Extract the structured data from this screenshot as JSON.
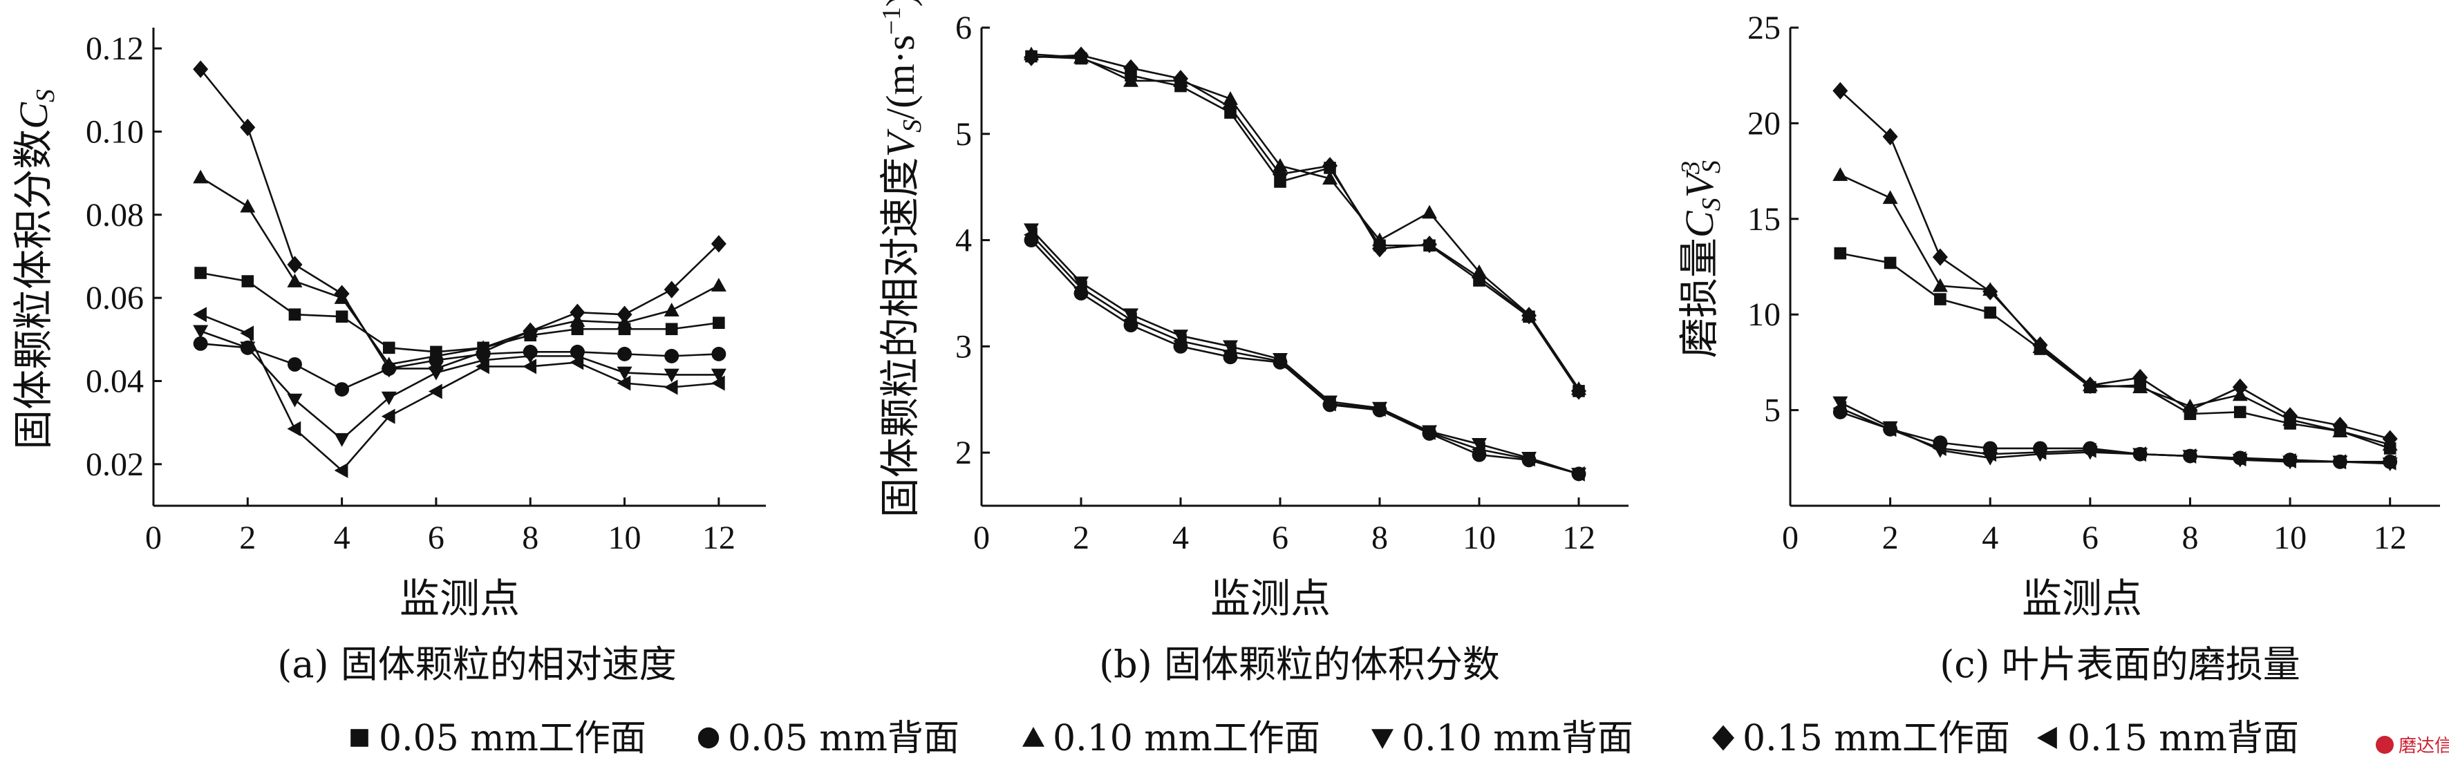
{
  "watermark": "磨达信",
  "series_markers": [
    "square",
    "circle",
    "triangle-up",
    "triangle-down",
    "diamond",
    "triangle-left"
  ],
  "legend": [
    {
      "marker": "square",
      "label": "0.05 mm工作面"
    },
    {
      "marker": "circle",
      "label": "0.05 mm背面"
    },
    {
      "marker": "triangle-up",
      "label": "0.10 mm工作面"
    },
    {
      "marker": "triangle-down",
      "label": "0.10 mm背面"
    },
    {
      "marker": "diamond",
      "label": "0.15 mm工作面"
    },
    {
      "marker": "triangle-left",
      "label": "0.15 mm背面"
    }
  ],
  "chart_data": [
    {
      "type": "line",
      "caption": "(a) 固体颗粒的相对速度",
      "xlabel": "监测点",
      "ylabel_main": "固体颗粒体积分数",
      "ylabel_var": "C",
      "ylabel_sub": "S",
      "xlim": [
        0,
        13
      ],
      "ylim": [
        0.01,
        0.125
      ],
      "xticks": [
        0,
        2,
        4,
        6,
        8,
        10,
        12
      ],
      "yticks": [
        0.02,
        0.04,
        0.06,
        0.08,
        0.1,
        0.12
      ],
      "ytick_labels": [
        "0.02",
        "0.04",
        "0.06",
        "0.08",
        "0.10",
        "0.12"
      ],
      "x": [
        1,
        2,
        3,
        4,
        5,
        6,
        7,
        8,
        9,
        10,
        11,
        12
      ],
      "series": [
        {
          "name": "0.05 mm工作面",
          "values": [
            0.066,
            0.064,
            0.056,
            0.0555,
            0.048,
            0.047,
            0.048,
            0.051,
            0.0525,
            0.0525,
            0.0525,
            0.054
          ]
        },
        {
          "name": "0.05 mm背面",
          "values": [
            0.049,
            0.048,
            0.044,
            0.038,
            0.043,
            0.045,
            0.0465,
            0.047,
            0.047,
            0.0465,
            0.046,
            0.0465
          ]
        },
        {
          "name": "0.10 mm工作面",
          "values": [
            0.089,
            0.082,
            0.064,
            0.06,
            0.044,
            0.046,
            0.048,
            0.052,
            0.0545,
            0.054,
            0.057,
            0.063
          ]
        },
        {
          "name": "0.10 mm背面",
          "values": [
            0.052,
            0.048,
            0.0355,
            0.026,
            0.036,
            0.042,
            0.045,
            0.046,
            0.046,
            0.042,
            0.0415,
            0.0415
          ]
        },
        {
          "name": "0.15 mm工作面",
          "values": [
            0.115,
            0.101,
            0.068,
            0.061,
            0.043,
            0.043,
            0.047,
            0.052,
            0.0565,
            0.056,
            0.062,
            0.073
          ]
        },
        {
          "name": "0.15 mm背面",
          "values": [
            0.056,
            0.0515,
            0.0285,
            0.0185,
            0.0315,
            0.0375,
            0.0435,
            0.0435,
            0.0445,
            0.0395,
            0.0385,
            0.0395
          ]
        }
      ]
    },
    {
      "type": "line",
      "caption": "(b) 固体颗粒的体积分数",
      "xlabel": "监测点",
      "ylabel_main": "固体颗粒的相对速度",
      "ylabel_var": "V",
      "ylabel_sub": "S",
      "ylabel_unit": "/(m·s",
      "ylabel_exp": "−1",
      "ylabel_close": ")",
      "xlim": [
        0,
        13
      ],
      "ylim": [
        1.5,
        6
      ],
      "xticks": [
        0,
        2,
        4,
        6,
        8,
        10,
        12
      ],
      "yticks": [
        2,
        3,
        4,
        5,
        6
      ],
      "ytick_labels": [
        "2",
        "3",
        "4",
        "5",
        "6"
      ],
      "x": [
        1,
        2,
        3,
        4,
        5,
        6,
        7,
        8,
        9,
        10,
        11,
        12
      ],
      "series": [
        {
          "name": "0.05 mm工作面",
          "values": [
            5.73,
            5.71,
            5.55,
            5.45,
            5.2,
            4.55,
            4.68,
            3.95,
            3.95,
            3.62,
            3.28,
            2.58
          ]
        },
        {
          "name": "0.05 mm背面",
          "values": [
            4.0,
            3.5,
            3.2,
            3.0,
            2.9,
            2.85,
            2.45,
            2.4,
            2.18,
            1.98,
            1.93,
            1.8
          ]
        },
        {
          "name": "0.10 mm工作面",
          "values": [
            5.75,
            5.72,
            5.5,
            5.5,
            5.33,
            4.7,
            4.58,
            4.0,
            4.26,
            3.7,
            3.3,
            2.6
          ]
        },
        {
          "name": "0.10 mm背面",
          "values": [
            4.1,
            3.6,
            3.3,
            3.1,
            3.0,
            2.88,
            2.48,
            2.42,
            2.2,
            2.08,
            1.95,
            1.8
          ]
        },
        {
          "name": "0.15 mm工作面",
          "values": [
            5.72,
            5.74,
            5.62,
            5.52,
            5.25,
            4.62,
            4.7,
            3.92,
            3.96,
            3.65,
            3.29,
            2.58
          ]
        },
        {
          "name": "0.15 mm背面",
          "values": [
            4.05,
            3.55,
            3.25,
            3.05,
            2.95,
            2.86,
            2.46,
            2.41,
            2.19,
            2.03,
            1.94,
            1.8
          ]
        }
      ]
    },
    {
      "type": "line",
      "caption": "(c) 叶片表面的磨损量",
      "xlabel": "监测点",
      "ylabel_main": "磨损量",
      "ylabel_var": "C",
      "ylabel_sub": "S",
      "ylabel_var2": "V",
      "ylabel_sub2": "S",
      "ylabel_sup2": "3",
      "xlim": [
        0,
        13
      ],
      "ylim": [
        0,
        25
      ],
      "xticks": [
        0,
        2,
        4,
        6,
        8,
        10,
        12
      ],
      "yticks": [
        5,
        10,
        15,
        20,
        25
      ],
      "ytick_labels": [
        "5",
        "10",
        "15",
        "20",
        "25"
      ],
      "x": [
        1,
        2,
        3,
        4,
        5,
        6,
        7,
        8,
        9,
        10,
        11,
        12
      ],
      "series": [
        {
          "name": "0.05 mm工作面",
          "values": [
            13.2,
            12.7,
            10.8,
            10.1,
            8.2,
            6.2,
            6.3,
            4.8,
            4.9,
            4.3,
            3.9,
            3.0
          ]
        },
        {
          "name": "0.05 mm背面",
          "values": [
            4.9,
            4.0,
            3.3,
            3.0,
            3.0,
            3.0,
            2.7,
            2.6,
            2.5,
            2.4,
            2.3,
            2.3
          ]
        },
        {
          "name": "0.10 mm工作面",
          "values": [
            17.3,
            16.1,
            11.5,
            11.3,
            8.3,
            6.3,
            6.2,
            5.2,
            5.8,
            4.5,
            3.9,
            3.2
          ]
        },
        {
          "name": "0.10 mm背面",
          "values": [
            5.4,
            4.1,
            2.9,
            2.5,
            2.7,
            2.8,
            2.7,
            2.6,
            2.4,
            2.3,
            2.3,
            2.2
          ]
        },
        {
          "name": "0.15 mm工作面",
          "values": [
            21.7,
            19.3,
            13.0,
            11.2,
            8.4,
            6.3,
            6.7,
            5.0,
            6.2,
            4.7,
            4.2,
            3.5
          ]
        },
        {
          "name": "0.15 mm背面",
          "values": [
            5.1,
            4.0,
            3.0,
            2.7,
            2.8,
            2.9,
            2.7,
            2.6,
            2.45,
            2.35,
            2.3,
            2.25
          ]
        }
      ]
    }
  ]
}
